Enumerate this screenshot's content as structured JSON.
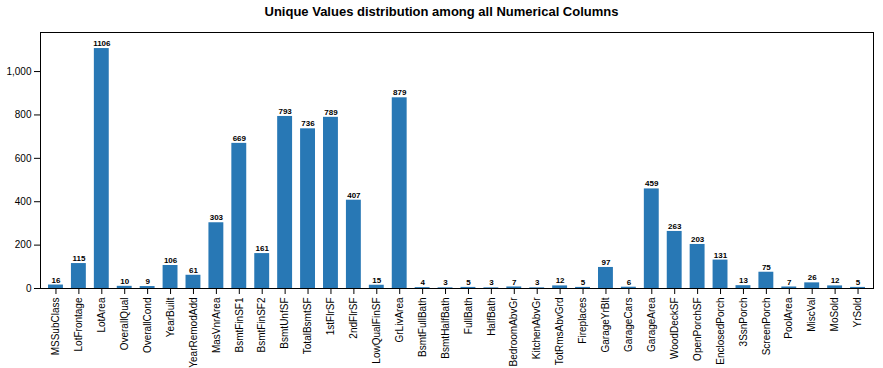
{
  "chart_data": {
    "type": "bar",
    "title": "Unique Values distribution among all Numerical Columns",
    "categories": [
      "MSSubClass",
      "LotFrontage",
      "LotArea",
      "OverallQual",
      "OverallCond",
      "YearBuilt",
      "YearRemodAdd",
      "MasVnrArea",
      "BsmtFinSF1",
      "BsmtFinSF2",
      "BsmtUnfSF",
      "TotalBsmtSF",
      "1stFlrSF",
      "2ndFlrSF",
      "LowQualFinSF",
      "GrLivArea",
      "BsmtFullBath",
      "BsmtHalfBath",
      "FullBath",
      "HalfBath",
      "BedroomAbvGr",
      "KitchenAbvGr",
      "TotRmsAbvGrd",
      "Fireplaces",
      "GarageYrBlt",
      "GarageCars",
      "GarageArea",
      "WoodDeckSF",
      "OpenPorchSF",
      "EnclosedPorch",
      "3SsnPorch",
      "ScreenPorch",
      "PoolArea",
      "MiscVal",
      "MoSold",
      "YrSold"
    ],
    "values": [
      16,
      115,
      1106,
      10,
      9,
      106,
      61,
      303,
      669,
      161,
      793,
      736,
      789,
      407,
      15,
      879,
      4,
      3,
      5,
      3,
      7,
      3,
      12,
      5,
      97,
      6,
      459,
      263,
      203,
      131,
      13,
      75,
      7,
      26,
      12,
      5
    ],
    "color": "#2878b5",
    "ylim": [
      0,
      1180
    ],
    "yticks": [
      0,
      200,
      400,
      600,
      800,
      1000
    ],
    "grid": false,
    "data_labels": true
  }
}
